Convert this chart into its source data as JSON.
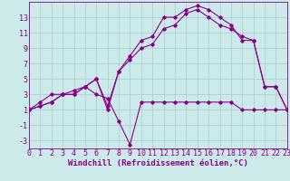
{
  "background_color": "#cceaea",
  "grid_color": "#aacccc",
  "line_color": "#880088",
  "xlabel": "Windchill (Refroidissement éolien,°C)",
  "xlim": [
    0,
    23
  ],
  "ylim": [
    -4,
    15
  ],
  "xticks": [
    0,
    1,
    2,
    3,
    4,
    5,
    6,
    7,
    8,
    9,
    10,
    11,
    12,
    13,
    14,
    15,
    16,
    17,
    18,
    19,
    20,
    21,
    22,
    23
  ],
  "yticks": [
    -3,
    -1,
    1,
    3,
    5,
    7,
    9,
    11,
    13
  ],
  "line1_x": [
    0,
    1,
    2,
    3,
    4,
    5,
    6,
    7,
    8,
    9,
    10,
    11,
    12,
    13,
    14,
    15,
    16,
    17,
    18,
    19,
    20,
    21,
    22,
    23
  ],
  "line1_y": [
    1,
    2,
    3,
    3,
    3,
    4,
    5,
    1,
    6,
    8,
    10,
    10.5,
    13,
    13,
    14,
    14.5,
    14,
    13,
    12,
    10,
    10,
    4,
    4,
    1
  ],
  "line2_x": [
    0,
    1,
    2,
    3,
    4,
    5,
    6,
    7,
    8,
    9,
    10,
    11,
    12,
    13,
    14,
    15,
    16,
    17,
    18,
    19,
    20,
    21,
    22,
    23
  ],
  "line2_y": [
    1,
    1.5,
    2,
    3,
    3.5,
    4,
    5,
    1.5,
    6,
    7.5,
    9,
    9.5,
    11.5,
    12,
    13.5,
    14,
    13,
    12,
    11.5,
    10.5,
    10,
    4,
    4,
    1
  ],
  "line3_x": [
    0,
    1,
    2,
    3,
    4,
    5,
    6,
    7,
    8,
    9,
    10,
    11,
    12,
    13,
    14,
    15,
    16,
    17,
    18,
    19,
    20,
    21,
    22,
    23
  ],
  "line3_y": [
    1,
    1.5,
    2,
    3,
    3,
    4,
    3,
    2.5,
    -0.5,
    -3.5,
    2,
    2,
    2,
    2,
    2,
    2,
    2,
    2,
    2,
    1,
    1,
    1,
    1,
    1
  ],
  "fontsize": 6.5,
  "tick_fontsize": 6
}
